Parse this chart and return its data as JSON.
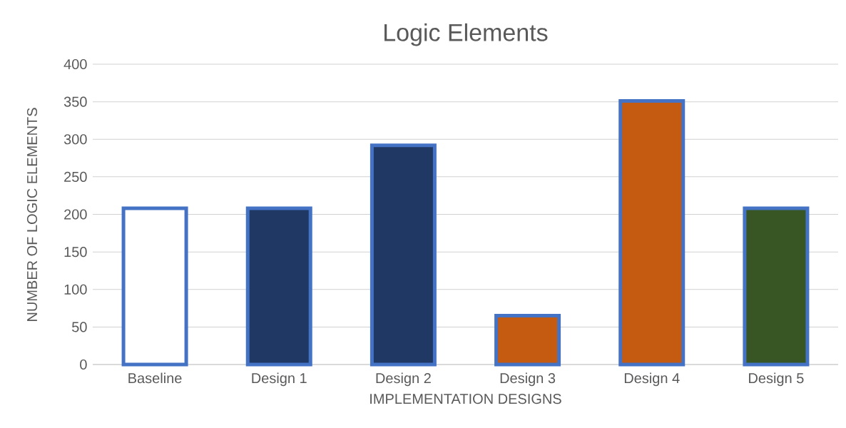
{
  "chart_data": {
    "type": "bar",
    "title": "Logic Elements",
    "xlabel": "IMPLEMENTATION DESIGNS",
    "ylabel": "NUMBER OF LOGIC ELEMENTS",
    "categories": [
      "Baseline",
      "Design 1",
      "Design 2",
      "Design 3",
      "Design 4",
      "Design 5"
    ],
    "values": [
      208,
      208,
      292,
      65,
      351,
      208
    ],
    "colors": [
      "#ffffff",
      "#1f3864",
      "#1f3864",
      "#c55a11",
      "#c55a11",
      "#375623"
    ],
    "ylim": [
      0,
      400
    ],
    "yticks": [
      0,
      50,
      100,
      150,
      200,
      250,
      300,
      350,
      400
    ],
    "grid": "y"
  }
}
